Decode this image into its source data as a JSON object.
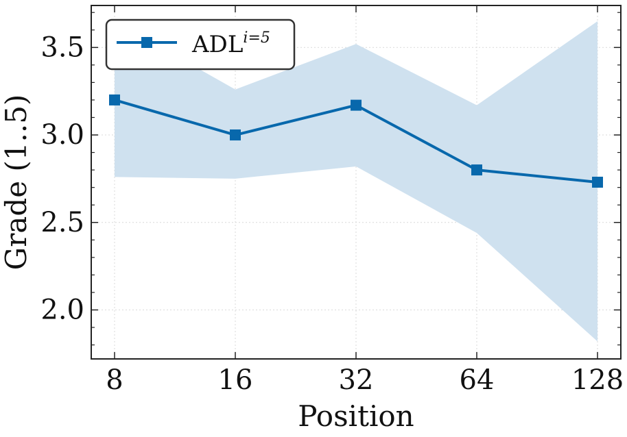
{
  "chart_data": {
    "type": "line",
    "x_positions": [
      8,
      16,
      32,
      64,
      128
    ],
    "x_tick_labels": [
      "8",
      "16",
      "32",
      "64",
      "128"
    ],
    "y_ticks": [
      2.0,
      2.5,
      3.0,
      3.5
    ],
    "y_tick_labels": [
      "2.0",
      "2.5",
      "3.0",
      "3.5"
    ],
    "xlabel": "Position",
    "ylabel": "Grade (1..5)",
    "ylim": [
      1.72,
      3.74
    ],
    "grid": true,
    "legend_position": "top-left",
    "series": [
      {
        "name": "ADL",
        "name_superscript": "i=5",
        "color": "#0868ac",
        "band_color": "#cfe1ef",
        "marker": "square",
        "values": [
          3.2,
          3.0,
          3.17,
          2.8,
          2.73
        ],
        "band_upper": [
          3.65,
          3.26,
          3.52,
          3.17,
          3.65
        ],
        "band_lower": [
          2.76,
          2.75,
          2.82,
          2.44,
          1.82
        ]
      }
    ]
  }
}
